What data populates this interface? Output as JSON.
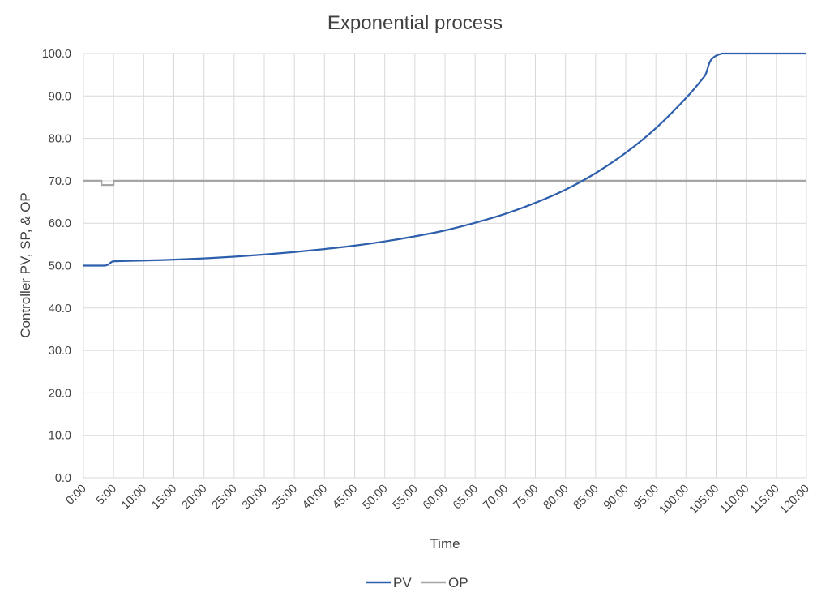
{
  "chart_data": {
    "type": "line",
    "title": "Exponential process",
    "xlabel": "Time",
    "ylabel": "Controller PV, SP, & OP",
    "ylim": [
      0,
      100
    ],
    "xlim_minutes": [
      0,
      120
    ],
    "grid": true,
    "legend_position": "bottom",
    "y_ticks": [
      "0.0",
      "10.0",
      "20.0",
      "30.0",
      "40.0",
      "50.0",
      "60.0",
      "70.0",
      "80.0",
      "90.0",
      "100.0"
    ],
    "x_ticks": [
      "0:00",
      "5:00",
      "10:00",
      "15:00",
      "20:00",
      "25:00",
      "30:00",
      "35:00",
      "40:00",
      "45:00",
      "50:00",
      "55:00",
      "60:00",
      "65:00",
      "70:00",
      "75:00",
      "80:00",
      "85:00",
      "90:00",
      "95:00",
      "100:00",
      "105:00",
      "110:00",
      "115:00",
      "120:00"
    ],
    "series": [
      {
        "name": "PV",
        "color": "#2e5fad",
        "points": [
          [
            0,
            50
          ],
          [
            3.5,
            50
          ],
          [
            4.5,
            50.7
          ],
          [
            5,
            51
          ],
          [
            7,
            51.1
          ],
          [
            10,
            51.2
          ],
          [
            15,
            51.4
          ],
          [
            20,
            51.7
          ],
          [
            25,
            52.1
          ],
          [
            30,
            52.6
          ],
          [
            35,
            53.2
          ],
          [
            40,
            53.9
          ],
          [
            45,
            54.7
          ],
          [
            50,
            55.7
          ],
          [
            55,
            56.9
          ],
          [
            60,
            58.3
          ],
          [
            65,
            60.1
          ],
          [
            70,
            62.2
          ],
          [
            75,
            64.8
          ],
          [
            80,
            67.9
          ],
          [
            85,
            71.8
          ],
          [
            90,
            76.6
          ],
          [
            95,
            82.4
          ],
          [
            100,
            89.5
          ],
          [
            103,
            94.5
          ],
          [
            106,
            100
          ],
          [
            120,
            100
          ]
        ]
      },
      {
        "name": "OP",
        "color": "#a5a5a5",
        "points": [
          [
            0,
            70
          ],
          [
            3,
            70
          ],
          [
            3,
            69
          ],
          [
            5,
            69
          ],
          [
            5,
            70
          ],
          [
            120,
            70
          ]
        ]
      }
    ]
  },
  "legend": {
    "items": [
      {
        "label": "PV",
        "color": "#2e5fad"
      },
      {
        "label": "OP",
        "color": "#a5a5a5"
      }
    ]
  }
}
